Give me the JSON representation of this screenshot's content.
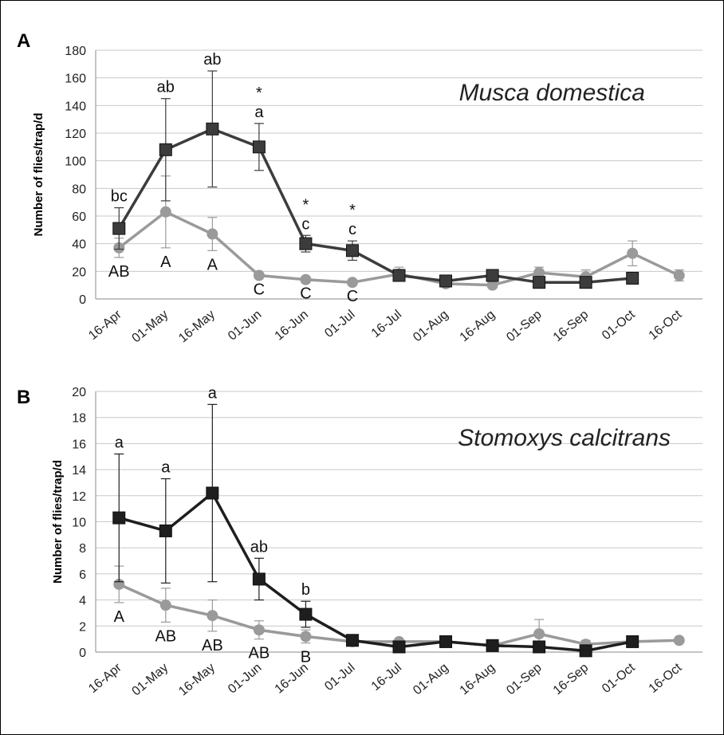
{
  "chart_data": [
    {
      "panel_label": "A",
      "type": "line",
      "species_label": "Musca domestica",
      "ylabel": "Number of flies/trap/d",
      "ylim": [
        0,
        180
      ],
      "yticks": [
        0,
        20,
        40,
        60,
        80,
        100,
        120,
        140,
        160,
        180
      ],
      "categories": [
        "16-Apr",
        "01-May",
        "16-May",
        "01-Jun",
        "16-Jun",
        "01-Jul",
        "16-Jul",
        "01-Aug",
        "16-Aug",
        "01-Sep",
        "16-Sep",
        "01-Oct",
        "16-Oct"
      ],
      "grid": true,
      "series": [
        {
          "color": "#9a9a9a",
          "marker": "circle",
          "values": [
            37,
            63,
            47,
            17,
            14,
            12,
            18,
            11,
            10,
            19,
            16,
            33,
            17
          ],
          "errors": [
            7,
            26,
            12,
            0,
            0,
            0,
            5,
            2,
            2,
            4,
            5,
            9,
            4
          ]
        },
        {
          "color": "#3c3c3c",
          "marker": "square",
          "values": [
            51,
            108,
            123,
            110,
            40,
            35,
            17,
            13,
            17,
            12,
            12,
            15,
            null
          ],
          "errors": [
            15,
            37,
            42,
            17,
            6,
            7,
            3,
            2,
            2,
            2,
            2,
            2,
            null
          ]
        }
      ],
      "annotations_upper": [
        {
          "category": "16-Apr",
          "text": "bc"
        },
        {
          "category": "01-May",
          "text": "ab"
        },
        {
          "category": "16-May",
          "text": "ab"
        },
        {
          "category": "01-Jun",
          "text": "a"
        },
        {
          "category": "16-Jun",
          "text": "c"
        },
        {
          "category": "01-Jul",
          "text": "c"
        }
      ],
      "annotations_star": [
        {
          "category": "01-Jun",
          "text": "*"
        },
        {
          "category": "16-Jun",
          "text": "*"
        },
        {
          "category": "01-Jul",
          "text": "*"
        }
      ],
      "annotations_lower": [
        {
          "category": "16-Apr",
          "text": "AB"
        },
        {
          "category": "01-May",
          "text": "A"
        },
        {
          "category": "16-May",
          "text": "A"
        },
        {
          "category": "01-Jun",
          "text": "C"
        },
        {
          "category": "16-Jun",
          "text": "C"
        },
        {
          "category": "01-Jul",
          "text": "C"
        }
      ]
    },
    {
      "panel_label": "B",
      "type": "line",
      "species_label": "Stomoxys calcitrans",
      "ylabel": "Number of flies/trap/d",
      "ylim": [
        0,
        20
      ],
      "yticks": [
        0,
        2,
        4,
        6,
        8,
        10,
        12,
        14,
        16,
        18,
        20
      ],
      "categories": [
        "16-Apr",
        "01-May",
        "16-May",
        "01-Jun",
        "16-Jun",
        "01-Jul",
        "16-Jul",
        "01-Aug",
        "16-Aug",
        "01-Sep",
        "16-Sep",
        "01-Oct",
        "16-Oct"
      ],
      "grid": true,
      "series": [
        {
          "color": "#9a9a9a",
          "marker": "circle",
          "values": [
            5.2,
            3.6,
            2.8,
            1.7,
            1.2,
            0.8,
            0.8,
            0.8,
            0.5,
            1.4,
            0.6,
            0.8,
            0.9
          ],
          "errors": [
            1.4,
            1.3,
            1.2,
            0.7,
            0.5,
            0.1,
            0.1,
            0.1,
            0.1,
            1.1,
            0.3,
            0.1,
            0.2
          ]
        },
        {
          "color": "#1e1e1e",
          "marker": "square",
          "values": [
            10.3,
            9.3,
            12.2,
            5.6,
            2.9,
            0.9,
            0.4,
            0.8,
            0.5,
            0.4,
            0.1,
            0.8,
            null
          ],
          "errors": [
            4.9,
            4.0,
            6.8,
            1.6,
            1.0,
            0,
            0,
            0,
            0,
            0,
            0,
            0,
            null
          ]
        }
      ],
      "annotations_upper": [
        {
          "category": "16-Apr",
          "text": "a"
        },
        {
          "category": "01-May",
          "text": "a"
        },
        {
          "category": "16-May",
          "text": "a"
        },
        {
          "category": "01-Jun",
          "text": "ab"
        },
        {
          "category": "16-Jun",
          "text": "b"
        }
      ],
      "annotations_star": [],
      "annotations_lower": [
        {
          "category": "16-Apr",
          "text": "A"
        },
        {
          "category": "01-May",
          "text": "AB"
        },
        {
          "category": "16-May",
          "text": "AB"
        },
        {
          "category": "01-Jun",
          "text": "AB"
        },
        {
          "category": "16-Jun",
          "text": "B"
        }
      ]
    }
  ]
}
